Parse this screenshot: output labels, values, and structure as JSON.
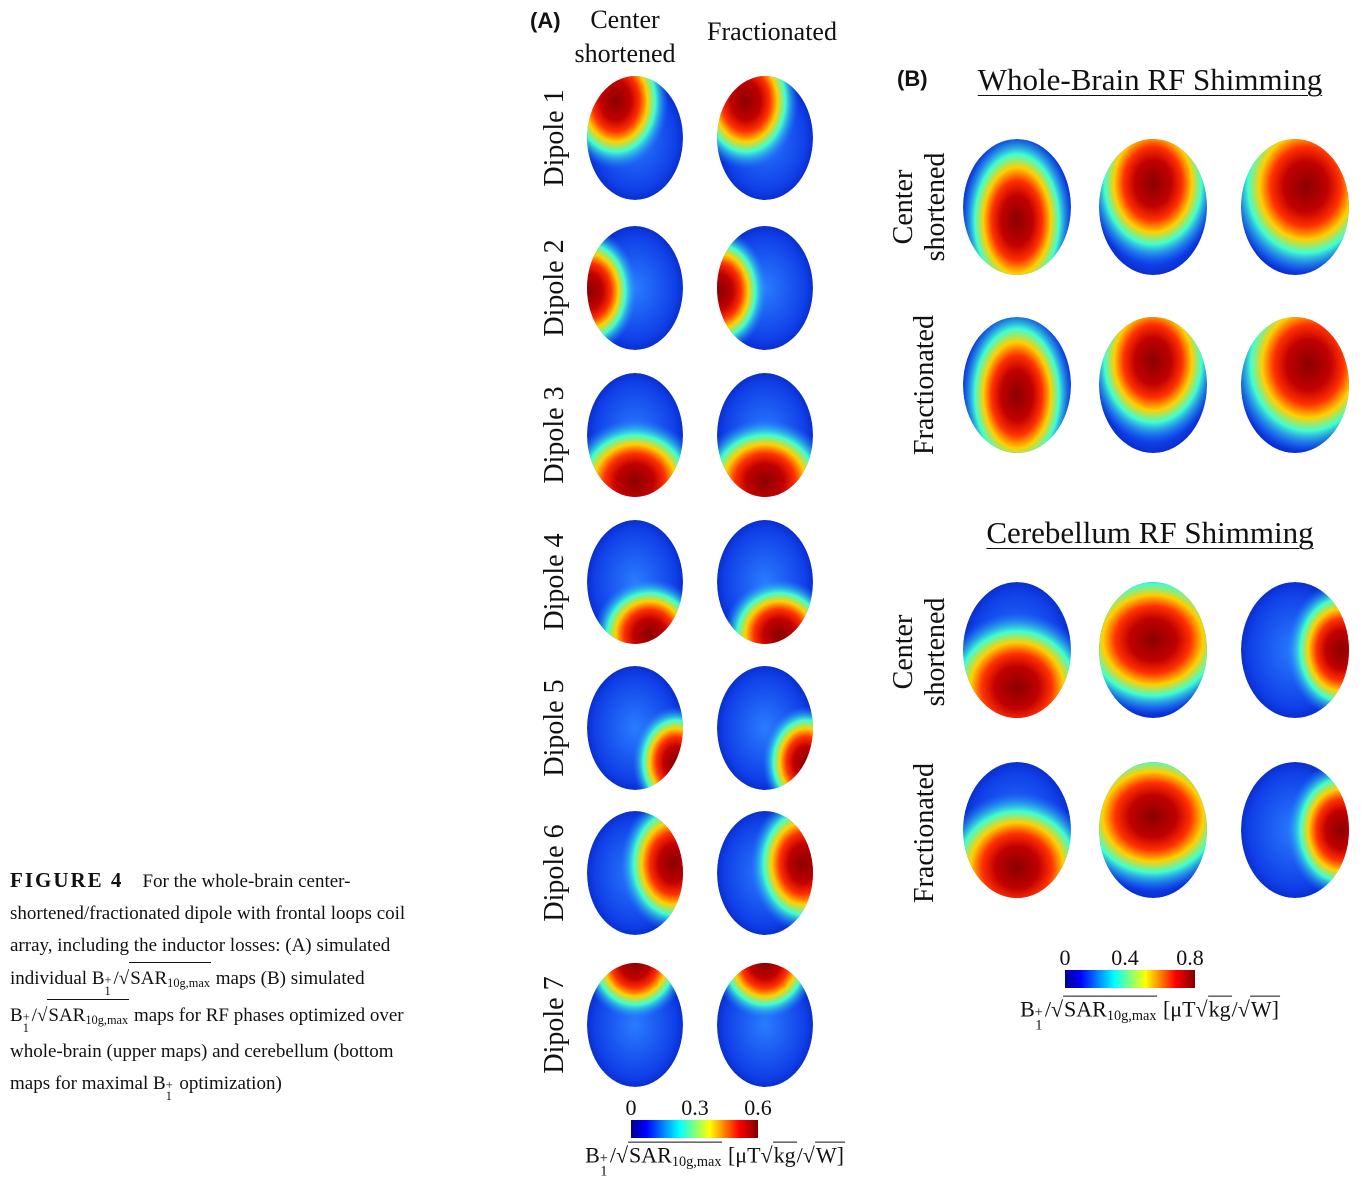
{
  "caption": {
    "label": "FIGURE 4",
    "text_1": "For the whole-brain center-shortened/fractionated dipole with frontal loops coil array, including the inductor losses: (A) simulated individual",
    "text_2": "maps (B) simulated",
    "text_3": "maps for RF phases optimized over whole-brain  (upper maps) and cerebellum (bottom maps for maximal",
    "text_4": "optimization)"
  },
  "math": {
    "b": "B",
    "b_sub": "1",
    "b_sup": "+",
    "slash": "/",
    "root": "√",
    "sar": "SAR",
    "sar_sub": "10g,max",
    "unit_open": "[μT",
    "kg": "kg",
    "unit_close": "W]"
  },
  "panel_a": {
    "label": "(A)",
    "column_1": [
      "Center",
      "shortened"
    ],
    "column_2": "Fractionated",
    "rows": [
      "Dipole 1",
      "Dipole 2",
      "Dipole 3",
      "Dipole 4",
      "Dipole 5",
      "Dipole 6",
      "Dipole 7"
    ],
    "colorbar_ticks": [
      "0",
      "0.3",
      "0.6"
    ]
  },
  "panel_b": {
    "label": "(B)",
    "sections": [
      {
        "title": "Whole-Brain RF Shimming",
        "row_1": [
          "Center",
          "shortened"
        ],
        "row_2": "Fractionated"
      },
      {
        "title": "Cerebellum RF Shimming",
        "row_1": [
          "Center",
          "shortened"
        ],
        "row_2": "Fractionated"
      }
    ],
    "colorbar_ticks": [
      "0",
      "0.4",
      "0.8"
    ]
  }
}
